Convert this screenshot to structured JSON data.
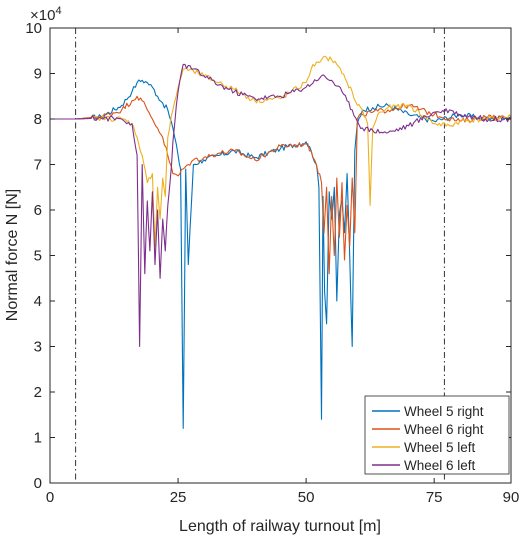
{
  "chart_data": {
    "type": "line",
    "xlabel": "Length of railway turnout [m]",
    "ylabel": "Normal force N [N]",
    "y_multiplier": "×10",
    "y_multiplier_exp": "4",
    "xlim": [
      0,
      90
    ],
    "ylim": [
      0,
      10
    ],
    "x_ticks": [
      0,
      25,
      50,
      75,
      90
    ],
    "y_ticks": [
      0,
      1,
      2,
      3,
      4,
      5,
      6,
      7,
      8,
      9,
      10
    ],
    "grid": false,
    "legend_position": "bottom-right",
    "vlines": [
      5,
      77
    ],
    "series": [
      {
        "name": "Wheel 5 right",
        "color": "#0072BD",
        "x": [
          0,
          5,
          10,
          14,
          16,
          17,
          18,
          19,
          20,
          21,
          22,
          23,
          24,
          25,
          25.5,
          26,
          26.5,
          27,
          28,
          30,
          33,
          36,
          40,
          45,
          50,
          51,
          52,
          52.5,
          53,
          53.3,
          53.6,
          54,
          54.5,
          55,
          55.5,
          56,
          56.5,
          57,
          57.5,
          58,
          58.5,
          59,
          59.5,
          60,
          61,
          63,
          66,
          70,
          75,
          80,
          85,
          90
        ],
        "y": [
          8,
          8,
          8.05,
          8.3,
          8.6,
          8.8,
          8.85,
          8.8,
          8.7,
          8.5,
          8.35,
          8.2,
          7.8,
          7.2,
          6.9,
          1.2,
          6.9,
          4.8,
          7.0,
          7.1,
          7.2,
          7.3,
          7.15,
          7.35,
          7.5,
          7.3,
          7.0,
          6.5,
          1.4,
          6.3,
          4.2,
          3.5,
          6.4,
          5.8,
          6.5,
          4.0,
          5.9,
          6.2,
          5.5,
          6.8,
          5.0,
          3.0,
          7.3,
          7.9,
          8.2,
          8.25,
          8.3,
          8.1,
          7.95,
          8.1,
          8.0,
          8.05
        ]
      },
      {
        "name": "Wheel 6 right",
        "color": "#D95319",
        "x": [
          0,
          5,
          10,
          14,
          16,
          17,
          18,
          19,
          20,
          21,
          22,
          23,
          24,
          25,
          26,
          27,
          28,
          30,
          33,
          36,
          40,
          45,
          50,
          51,
          52,
          53,
          53.5,
          54,
          54.5,
          55,
          55.5,
          56,
          56.5,
          57,
          57.5,
          58,
          58.5,
          59,
          59.5,
          60,
          61,
          63,
          66,
          70,
          75,
          80,
          85,
          90
        ],
        "y": [
          8,
          8,
          8.05,
          8.2,
          8.4,
          8.5,
          8.4,
          8.2,
          8.0,
          7.8,
          7.6,
          7.2,
          6.8,
          6.75,
          6.9,
          7.0,
          7.1,
          7.15,
          7.25,
          7.3,
          7.1,
          7.4,
          7.45,
          7.3,
          7.0,
          6.6,
          5.5,
          6.5,
          4.6,
          6.3,
          5.0,
          6.7,
          5.4,
          6.6,
          4.9,
          6.1,
          5.2,
          6.7,
          5.5,
          8.0,
          8.1,
          8.15,
          8.2,
          8.3,
          8.1,
          7.95,
          8.05,
          8.0
        ]
      },
      {
        "name": "Wheel 5 left",
        "color": "#EDB120",
        "x": [
          0,
          5,
          10,
          14,
          16,
          17,
          18,
          19,
          20,
          20.5,
          21,
          21.5,
          22,
          22.5,
          23,
          24,
          25,
          26,
          28,
          30,
          33,
          36,
          40,
          45,
          50,
          51,
          52,
          53,
          54,
          55,
          56,
          57,
          58,
          59,
          60,
          61,
          62,
          62.5,
          63,
          64,
          66,
          70,
          75,
          78,
          80,
          85,
          90
        ],
        "y": [
          8,
          8,
          8.02,
          8.0,
          7.9,
          7.6,
          7.2,
          6.6,
          6.8,
          5.2,
          6.5,
          5.8,
          6.7,
          6.3,
          7.6,
          8.2,
          8.7,
          9.1,
          9.05,
          8.95,
          8.8,
          8.65,
          8.4,
          8.45,
          8.8,
          9.1,
          9.25,
          9.3,
          9.35,
          9.3,
          9.2,
          9.0,
          8.8,
          8.6,
          8.3,
          8.2,
          7.9,
          6.1,
          7.8,
          8.1,
          8.25,
          8.3,
          7.9,
          7.85,
          7.95,
          8.0,
          8.05
        ]
      },
      {
        "name": "Wheel 6 left",
        "color": "#7E2F8E",
        "x": [
          0,
          5,
          10,
          14,
          16,
          17,
          17.5,
          18,
          18.5,
          19,
          19.5,
          20,
          20.5,
          21,
          21.5,
          22,
          22.5,
          23,
          23.5,
          24,
          25,
          26,
          28,
          30,
          33,
          36,
          40,
          45,
          50,
          53,
          55,
          57,
          58,
          59,
          60,
          61,
          63,
          66,
          70,
          75,
          78,
          80,
          85,
          90
        ],
        "y": [
          8,
          8,
          8.02,
          8.0,
          7.9,
          7.2,
          3.0,
          7.0,
          4.6,
          6.2,
          5.1,
          6.4,
          4.8,
          6.0,
          4.5,
          5.8,
          5.1,
          6.1,
          6.7,
          7.5,
          8.6,
          9.2,
          9.1,
          8.95,
          8.75,
          8.6,
          8.45,
          8.5,
          8.7,
          8.95,
          8.85,
          8.6,
          8.4,
          8.2,
          7.95,
          7.8,
          7.75,
          7.7,
          7.85,
          8.15,
          8.2,
          8.1,
          8.0,
          8.0
        ]
      }
    ]
  }
}
